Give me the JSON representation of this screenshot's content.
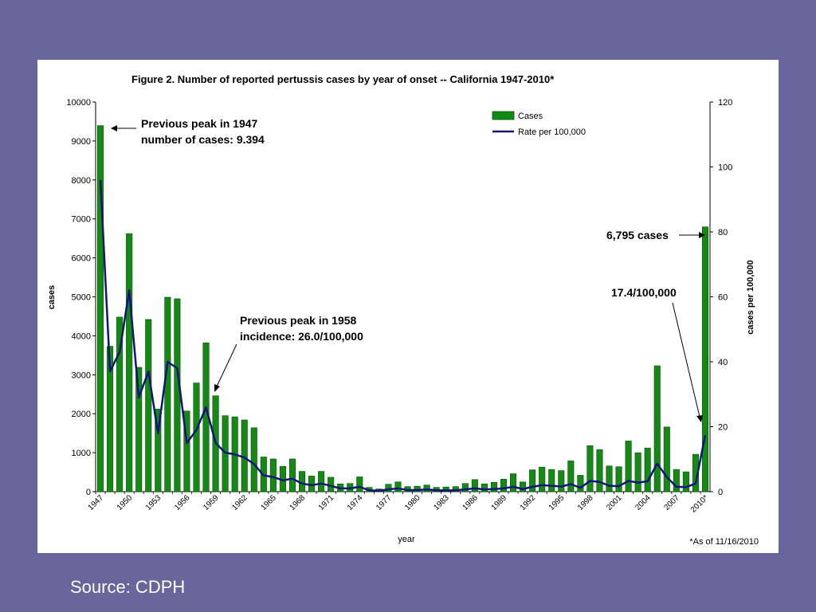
{
  "source": "Source: CDPH",
  "chart_data": {
    "type": "bar",
    "title": "Figure 2. Number of reported pertussis cases by year of onset -- California 1947-2010*",
    "xlabel": "year",
    "ylabel": "cases",
    "ylabel_right": "cases per 100,000",
    "ylim": [
      0,
      10000
    ],
    "ylim_right": [
      0,
      120
    ],
    "y_ticks": [
      0,
      1000,
      2000,
      3000,
      4000,
      5000,
      6000,
      7000,
      8000,
      9000,
      10000
    ],
    "y_ticks_right": [
      0,
      20,
      40,
      60,
      80,
      100,
      120
    ],
    "x_tick_labels": [
      "1947",
      "1950",
      "1953",
      "1956",
      "1959",
      "1962",
      "1965",
      "1968",
      "1971",
      "1974",
      "1977",
      "1980",
      "1983",
      "1986",
      "1989",
      "1992",
      "1995",
      "1998",
      "2001",
      "2004",
      "2007",
      "2010*"
    ],
    "grid": false,
    "legend_position": "top-right",
    "colors": {
      "bars": "#138a13",
      "bar_edge": "#0a4f0a",
      "line": "#101478"
    },
    "categories": [
      1947,
      1948,
      1949,
      1950,
      1951,
      1952,
      1953,
      1954,
      1955,
      1956,
      1957,
      1958,
      1959,
      1960,
      1961,
      1962,
      1963,
      1964,
      1965,
      1966,
      1967,
      1968,
      1969,
      1970,
      1971,
      1972,
      1973,
      1974,
      1975,
      1976,
      1977,
      1978,
      1979,
      1980,
      1981,
      1982,
      1983,
      1984,
      1985,
      1986,
      1987,
      1988,
      1989,
      1990,
      1991,
      1992,
      1993,
      1994,
      1995,
      1996,
      1997,
      1998,
      1999,
      2000,
      2001,
      2002,
      2003,
      2004,
      2005,
      2006,
      2007,
      2008,
      2009,
      2010
    ],
    "series": [
      {
        "name": "Cases",
        "type": "bar",
        "axis": "left",
        "values": [
          9394,
          3730,
          4480,
          6620,
          3190,
          4420,
          2120,
          4990,
          4950,
          2070,
          2790,
          3820,
          2460,
          1950,
          1920,
          1840,
          1640,
          890,
          840,
          650,
          840,
          520,
          400,
          520,
          370,
          200,
          210,
          380,
          110,
          70,
          190,
          250,
          130,
          140,
          170,
          110,
          120,
          130,
          210,
          310,
          200,
          240,
          320,
          460,
          250,
          560,
          630,
          570,
          540,
          790,
          420,
          1180,
          1080,
          660,
          640,
          1300,
          1000,
          1120,
          3230,
          1660,
          570,
          510,
          960,
          6795
        ]
      },
      {
        "name": "Rate per 100,000",
        "type": "line",
        "axis": "right",
        "values": [
          96,
          37,
          43,
          62,
          29,
          37,
          18,
          40,
          38,
          15,
          19,
          26,
          15,
          12,
          11.5,
          10.5,
          8.5,
          5,
          4.5,
          3.5,
          4,
          2.5,
          2,
          2.5,
          1.8,
          1,
          1,
          1.5,
          0.4,
          0.3,
          0.7,
          1,
          0.5,
          0.5,
          0.7,
          0.4,
          0.4,
          0.4,
          0.7,
          1,
          0.7,
          0.8,
          1,
          1.5,
          0.8,
          1.5,
          2,
          1.8,
          1.6,
          2.3,
          1.2,
          3.3,
          3,
          1.8,
          1.7,
          3.3,
          2.8,
          3.2,
          8.6,
          4.5,
          1.5,
          1.4,
          2.5,
          17.4
        ]
      }
    ],
    "annotations": [
      {
        "id": "peak1947",
        "lines": [
          "Previous peak in 1947",
          "number of cases: 9.394"
        ]
      },
      {
        "id": "peak1958",
        "lines": [
          "Previous peak in 1958",
          "incidence: 26.0/100,000"
        ]
      },
      {
        "id": "cases2010",
        "lines": [
          "6,795 cases"
        ]
      },
      {
        "id": "rate2010",
        "lines": [
          "17.4/100,000"
        ]
      }
    ],
    "footnote": "*As of 11/16/2010"
  }
}
